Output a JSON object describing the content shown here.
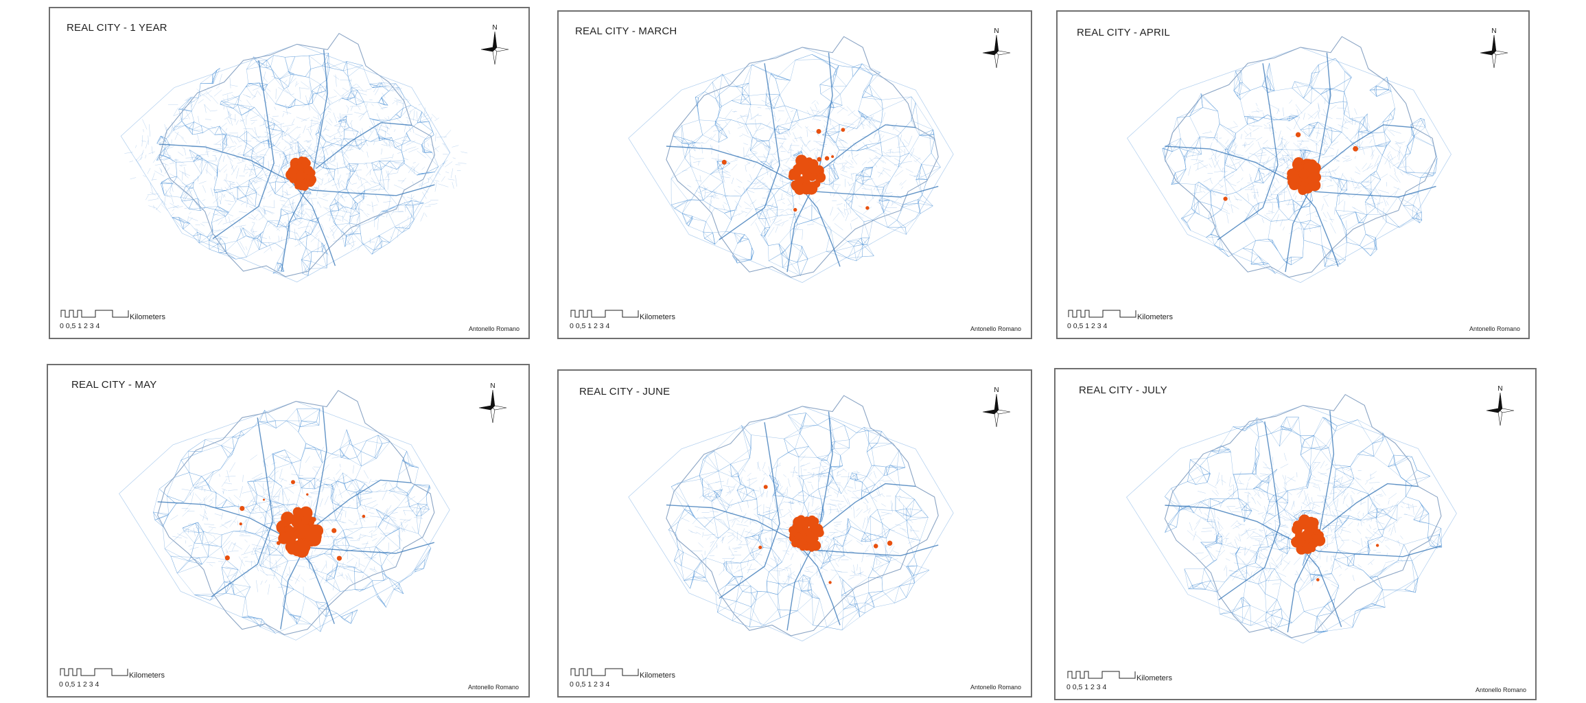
{
  "panels": [
    {
      "id": "p1",
      "title": "REAL CITY - 1 YEAR",
      "author": "Antonello Romano",
      "density": 1.0,
      "core_scale": 0.85,
      "hotspots": 0
    },
    {
      "id": "p2",
      "title": "REAL CITY - MARCH",
      "author": "Antonello Romano",
      "density": 0.45,
      "core_scale": 1.0,
      "hotspots": 8
    },
    {
      "id": "p3",
      "title": "REAL CITY - APRIL",
      "author": "Antonello Romano",
      "density": 0.42,
      "core_scale": 0.95,
      "hotspots": 3
    },
    {
      "id": "p4",
      "title": "REAL CITY - MAY",
      "author": "Antonello Romano",
      "density": 0.45,
      "core_scale": 1.25,
      "hotspots": 10
    },
    {
      "id": "p5",
      "title": "REAL CITY - JUNE",
      "author": "Antonello Romano",
      "density": 0.42,
      "core_scale": 1.0,
      "hotspots": 5
    },
    {
      "id": "p6",
      "title": "REAL CITY - JULY",
      "author": "Antonello Romano",
      "density": 0.42,
      "core_scale": 0.95,
      "hotspots": 2
    }
  ],
  "scale": {
    "unit": "Kilometers",
    "ticks": "0 0,5 1     2      3      4"
  },
  "compass_label": "N",
  "colors": {
    "network": "#4a8fd6",
    "boundary": "#8aa4c4",
    "road": "#3a78b8",
    "core": "#e8500e",
    "frame": "#6f6f6f"
  }
}
